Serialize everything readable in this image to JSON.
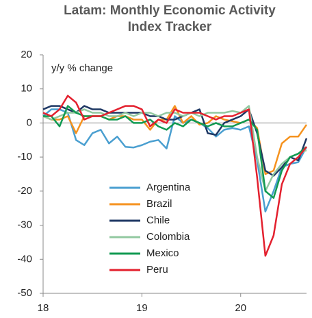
{
  "chart_data": {
    "type": "line",
    "title": "Latam: Monthly Economic Activity Index Tracker",
    "y_label": "y/y % change",
    "categories": [
      "18",
      null,
      null,
      null,
      null,
      null,
      null,
      null,
      null,
      null,
      null,
      null,
      "19",
      null,
      null,
      null,
      null,
      null,
      null,
      null,
      null,
      null,
      null,
      null,
      "20",
      null,
      null,
      null,
      null,
      null,
      null,
      null,
      null
    ],
    "ylim": [
      -50,
      20
    ],
    "yticks": [
      -50,
      -40,
      -30,
      -20,
      -10,
      0,
      10,
      20
    ],
    "series": [
      {
        "name": "Argentina",
        "color": "#4a9fd0",
        "values": [
          2,
          4,
          4,
          3,
          -5,
          -6.5,
          -3,
          -2,
          -6,
          -4,
          -7,
          -7.2,
          -6.5,
          -5.5,
          -5,
          -7.5,
          2,
          0,
          1,
          0,
          -1.5,
          -4,
          -2,
          -1.5,
          -2,
          -1,
          -11,
          -26,
          -20,
          -13,
          -12,
          -11.5,
          -7
        ]
      },
      {
        "name": "Brazil",
        "color": "#f5921e",
        "values": [
          2,
          1,
          1,
          2,
          -3,
          2,
          2,
          2,
          1,
          2,
          2,
          1,
          1,
          -2,
          1,
          1,
          5,
          0,
          2,
          -0.5,
          0,
          2,
          1,
          0.5,
          0,
          1,
          -1.5,
          -15,
          -14,
          -6,
          -4,
          -4,
          -0.5
        ]
      },
      {
        "name": "Chile",
        "color": "#1f3864",
        "values": [
          4,
          5,
          5,
          4,
          3,
          5,
          4,
          4,
          3,
          3,
          3,
          3,
          3,
          2,
          2,
          1,
          1,
          2,
          3,
          4,
          -3,
          -3.5,
          0,
          1,
          2,
          4,
          -3,
          -14,
          -15.5,
          -13,
          -10,
          -11,
          -4.5
        ]
      },
      {
        "name": "Colombia",
        "color": "#92c8a0",
        "values": [
          2,
          1,
          2,
          3,
          3,
          4,
          3,
          3,
          2,
          2,
          3,
          2,
          3,
          3,
          2,
          3,
          3,
          2,
          3,
          2,
          3,
          3,
          3,
          3.5,
          3,
          5,
          -10,
          -20,
          -15,
          -12,
          -10,
          -9,
          -8
        ]
      },
      {
        "name": "Mexico",
        "color": "#119a52",
        "values": [
          2,
          2,
          -1,
          5,
          3,
          2,
          2,
          2,
          1,
          1,
          2,
          0,
          0,
          1,
          -1,
          -2,
          0,
          -1,
          1,
          0,
          -1,
          0,
          -1,
          -1,
          0,
          1,
          -2,
          -20,
          -22,
          -14,
          -10,
          -9,
          -7
        ]
      },
      {
        "name": "Peru",
        "color": "#e3202e",
        "values": [
          3,
          2,
          4,
          8,
          6,
          1,
          2,
          2,
          3,
          4,
          5,
          5,
          4,
          -1,
          1,
          0,
          4,
          3,
          3,
          3,
          2,
          1,
          2,
          2,
          3,
          4,
          -16,
          -39,
          -33,
          -18,
          -12,
          -10,
          -7
        ]
      }
    ]
  }
}
